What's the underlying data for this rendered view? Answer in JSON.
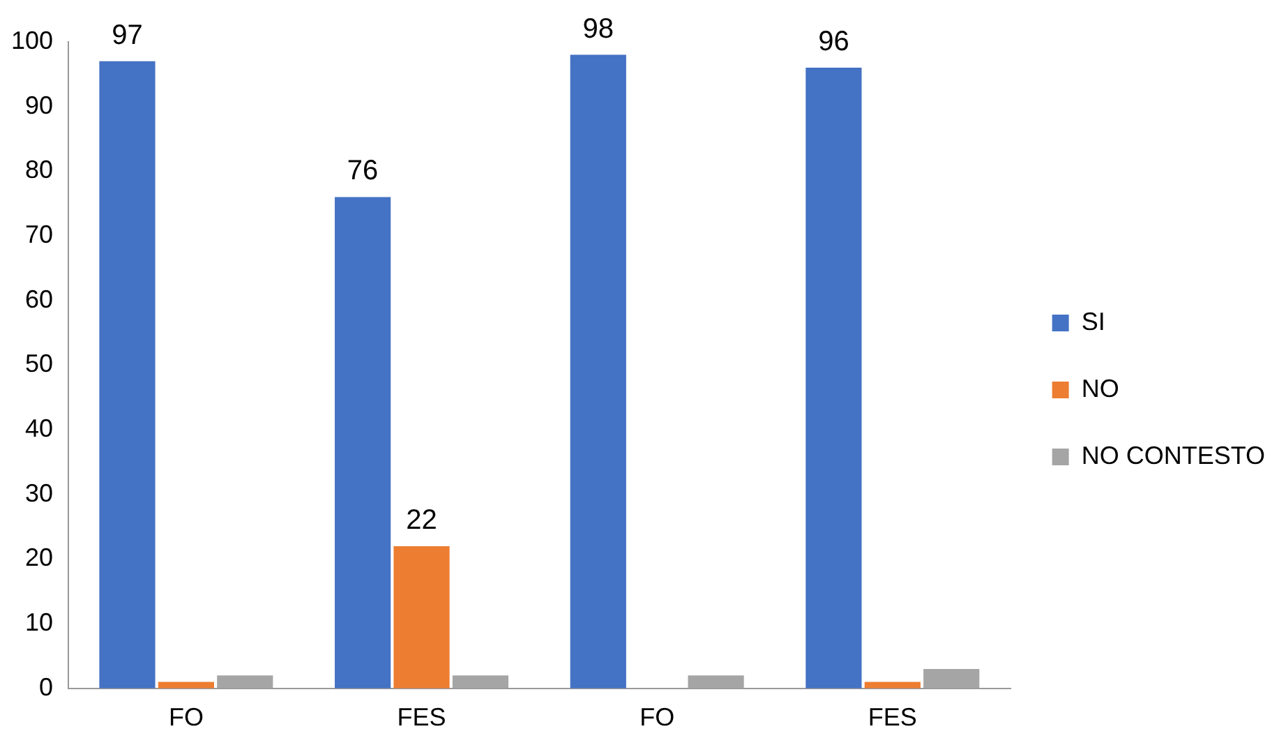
{
  "chart_data": {
    "type": "bar",
    "categories": [
      "FO",
      "FES",
      "FO",
      "FES"
    ],
    "series": [
      {
        "name": "SI",
        "color": "#4472c4",
        "values": [
          97,
          76,
          98,
          96
        ],
        "value_labels": [
          "97",
          "76",
          "98",
          "96"
        ]
      },
      {
        "name": "NO",
        "color": "#ed7d31",
        "values": [
          1,
          22,
          0,
          1
        ],
        "value_labels": [
          null,
          "22",
          null,
          null
        ]
      },
      {
        "name": "NO CONTESTO",
        "color": "#a5a5a5",
        "values": [
          2,
          2,
          2,
          3
        ],
        "value_labels": [
          null,
          null,
          null,
          null
        ]
      }
    ],
    "ylim": [
      0,
      100
    ],
    "yticks": [
      0,
      10,
      20,
      30,
      40,
      50,
      60,
      70,
      80,
      90,
      100
    ],
    "grid": false,
    "legend": "right"
  }
}
